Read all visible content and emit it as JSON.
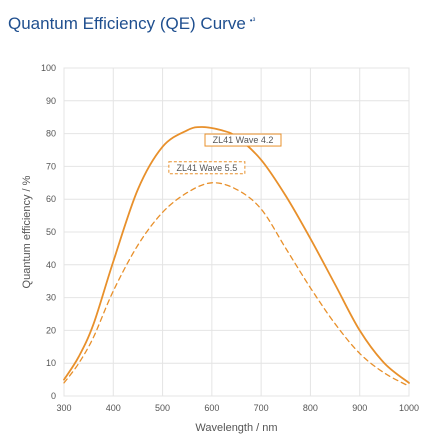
{
  "header": {
    "title": "Quantum Efficiency (QE) Curve",
    "footnote": "•³"
  },
  "chart_data": {
    "type": "line",
    "title": "Quantum Efficiency (QE) Curve",
    "xlabel": "Wavelength / nm",
    "ylabel": "Quantum efficiency / %",
    "xlim": [
      300,
      1000
    ],
    "ylim": [
      0,
      100
    ],
    "xticks": [
      300,
      400,
      500,
      600,
      700,
      800,
      900,
      1000
    ],
    "yticks": [
      0,
      10,
      20,
      30,
      40,
      50,
      60,
      70,
      80,
      90,
      100
    ],
    "grid": true,
    "colors": {
      "series": "#e8902b",
      "annotation_border": "#e8902b",
      "grid": "#e4e4e4",
      "text": "#555555",
      "title": "#1f4f8f"
    },
    "annotations": [
      {
        "text": "ZL41 Wave 4.2",
        "series_index": 0
      },
      {
        "text": "ZL41 Wave 5.5",
        "series_index": 1
      }
    ],
    "series": [
      {
        "name": "ZL41 Wave 4.2",
        "style": "solid",
        "x": [
          300,
          330,
          360,
          400,
          450,
          500,
          550,
          580,
          620,
          650,
          700,
          750,
          800,
          850,
          900,
          950,
          1000
        ],
        "y": [
          5,
          12,
          22,
          41,
          63,
          76,
          81,
          82,
          81,
          79,
          72,
          61,
          48,
          34,
          20,
          10,
          4
        ]
      },
      {
        "name": "ZL41 Wave 5.5",
        "style": "dashed",
        "x": [
          300,
          330,
          360,
          400,
          450,
          500,
          550,
          600,
          650,
          700,
          750,
          800,
          850,
          900,
          950,
          1000
        ],
        "y": [
          4,
          10,
          18,
          32,
          46,
          56,
          62,
          65,
          63,
          57,
          45,
          33,
          22,
          13,
          7,
          3
        ]
      }
    ]
  }
}
